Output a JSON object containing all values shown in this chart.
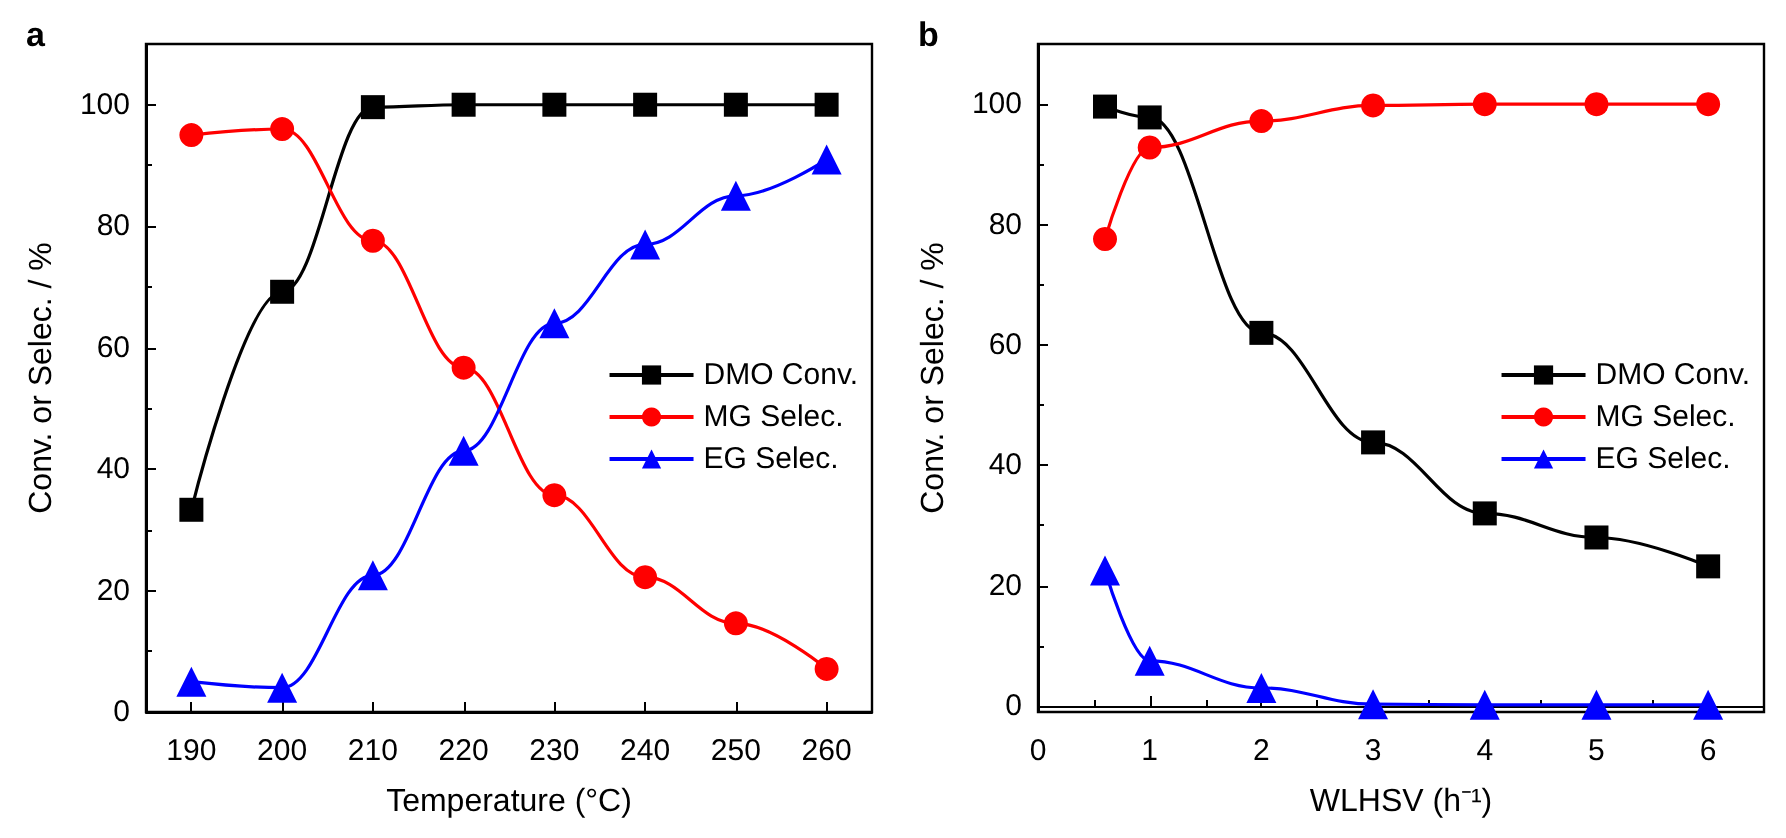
{
  "chart_data": [
    {
      "type": "line",
      "title": "a",
      "xlabel": "Temperature (°C)",
      "ylabel": "Conv. or Selec. / %",
      "x": [
        190,
        200,
        210,
        220,
        230,
        240,
        250,
        260
      ],
      "xlim": [
        185,
        265
      ],
      "xticks": [
        190,
        200,
        210,
        220,
        230,
        240,
        250,
        260
      ],
      "ylim": [
        0,
        110
      ],
      "yticks": [
        0,
        20,
        40,
        60,
        80,
        100
      ],
      "grid": false,
      "legend": "right",
      "series": [
        {
          "name": "DMO Conv.",
          "color": "#000000",
          "marker": "square",
          "values": [
            33.3,
            69.2,
            99.6,
            100,
            100,
            100,
            100,
            100
          ]
        },
        {
          "name": "MG Selec.",
          "color": "#ff0000",
          "marker": "circle",
          "values": [
            95,
            96,
            77.6,
            56.7,
            35.7,
            22.2,
            14.6,
            7.1
          ]
        },
        {
          "name": "EG Selec.",
          "color": "#0000ff",
          "marker": "triangle",
          "values": [
            5,
            4,
            22.5,
            43,
            64,
            77,
            85,
            91
          ]
        }
      ]
    },
    {
      "type": "line",
      "title": "b",
      "xlabel": "WLHSV (h⁻¹)",
      "ylabel": "Conv. or Selec. / %",
      "x": [
        0.6,
        1,
        2,
        3,
        4,
        5,
        6
      ],
      "xlim": [
        0,
        6.5
      ],
      "xticks": [
        0,
        1,
        2,
        3,
        4,
        5,
        6
      ],
      "ylim": [
        -1,
        110
      ],
      "yticks": [
        0,
        20,
        40,
        60,
        80,
        100
      ],
      "grid": false,
      "legend": "right",
      "series": [
        {
          "name": "DMO Conv.",
          "color": "#000000",
          "marker": "square",
          "values": [
            99.6,
            97.8,
            62,
            43.8,
            32,
            28,
            23.2
          ]
        },
        {
          "name": "MG Selec.",
          "color": "#ff0000",
          "marker": "circle",
          "values": [
            77.6,
            92.8,
            97.2,
            99.8,
            100,
            100,
            100
          ]
        },
        {
          "name": "EG Selec.",
          "color": "#0000ff",
          "marker": "triangle",
          "values": [
            22.5,
            7.5,
            3,
            0.3,
            0.2,
            0.2,
            0.2
          ]
        }
      ]
    }
  ]
}
